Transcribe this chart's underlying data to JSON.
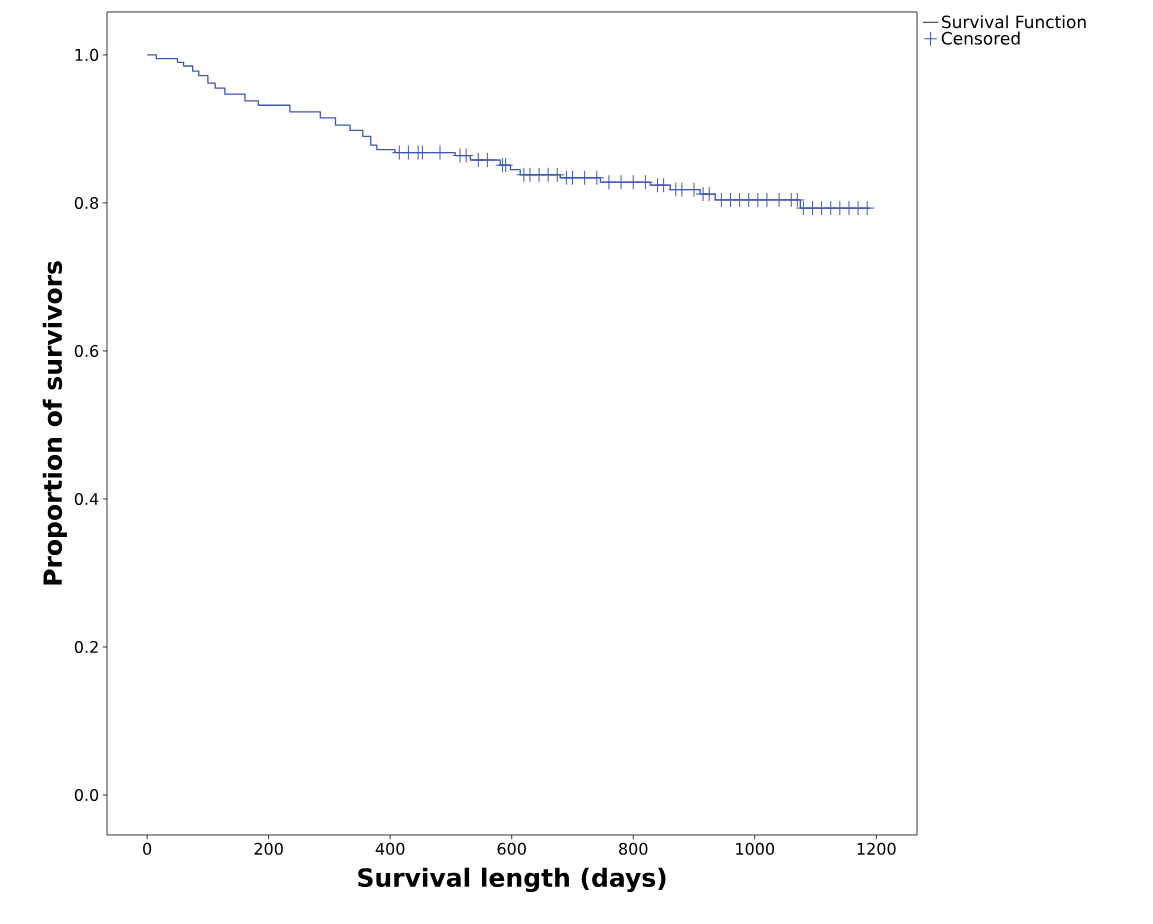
{
  "chart_data": {
    "type": "step",
    "xlabel": "Survival length (days)",
    "ylabel": "Proportion of survivors",
    "xlim": [
      -66,
      1267
    ],
    "ylim": [
      -0.054,
      1.058
    ],
    "xticks": [
      0,
      200,
      400,
      600,
      800,
      1000,
      1200
    ],
    "yticks": [
      {
        "value": 0,
        "label": "0.0"
      },
      {
        "value": 0.2,
        "label": "0.2"
      },
      {
        "value": 0.4,
        "label": "0.4"
      },
      {
        "value": 0.6,
        "label": "0.6"
      },
      {
        "value": 0.8,
        "label": "0.8"
      },
      {
        "value": 1,
        "label": "1.0"
      }
    ],
    "legend": "top right",
    "series": [
      {
        "name": "Survival Function",
        "color": "#3f55b0",
        "x": [
          0,
          15,
          50,
          60,
          75,
          85,
          100,
          112,
          128,
          161,
          183,
          235,
          285,
          310,
          334,
          355,
          368,
          378,
          408,
          507,
          532,
          581,
          598,
          614,
          680,
          746,
          828,
          861,
          910,
          935,
          1075,
          1190
        ],
        "values": [
          1.0,
          0.995,
          0.99,
          0.985,
          0.978,
          0.972,
          0.962,
          0.955,
          0.947,
          0.938,
          0.932,
          0.923,
          0.915,
          0.905,
          0.898,
          0.89,
          0.878,
          0.872,
          0.868,
          0.864,
          0.858,
          0.851,
          0.845,
          0.838,
          0.834,
          0.828,
          0.824,
          0.818,
          0.812,
          0.804,
          0.793,
          0.793
        ]
      },
      {
        "name": "Censored",
        "type": "scatter",
        "marker": "cross",
        "color": "#3f55b0",
        "x": [
          415,
          430,
          446,
          453,
          482,
          515,
          525,
          545,
          560,
          585,
          590,
          620,
          630,
          645,
          660,
          675,
          690,
          700,
          720,
          740,
          760,
          780,
          800,
          820,
          840,
          850,
          870,
          880,
          900,
          915,
          925,
          945,
          960,
          975,
          990,
          1005,
          1020,
          1040,
          1060,
          1070,
          1080,
          1095,
          1110,
          1125,
          1140,
          1155,
          1170,
          1185
        ],
        "values": [
          0.868,
          0.868,
          0.868,
          0.868,
          0.868,
          0.864,
          0.864,
          0.858,
          0.858,
          0.851,
          0.851,
          0.838,
          0.838,
          0.838,
          0.838,
          0.838,
          0.834,
          0.834,
          0.834,
          0.834,
          0.828,
          0.828,
          0.828,
          0.828,
          0.824,
          0.824,
          0.818,
          0.818,
          0.818,
          0.812,
          0.812,
          0.804,
          0.804,
          0.804,
          0.804,
          0.804,
          0.804,
          0.804,
          0.804,
          0.804,
          0.793,
          0.793,
          0.793,
          0.793,
          0.793,
          0.793,
          0.793,
          0.793
        ]
      }
    ]
  }
}
